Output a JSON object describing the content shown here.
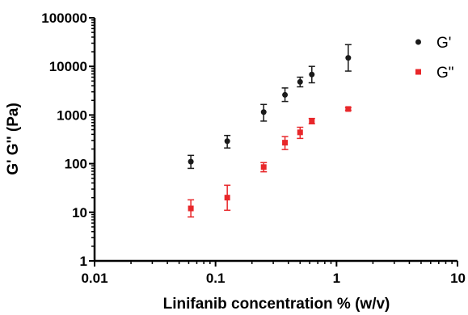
{
  "chart_data": {
    "type": "scatter",
    "title": "",
    "xlabel": "Linifanib concentration % (w/v)",
    "ylabel": "G' G'' (Pa)",
    "xscale": "log",
    "yscale": "log",
    "xlim": [
      0.01,
      10
    ],
    "ylim": [
      1,
      100000
    ],
    "x_ticks": [
      "0.01",
      "0.1",
      "1",
      "10"
    ],
    "y_ticks": [
      "1",
      "10",
      "100",
      "1000",
      "10000",
      "100000"
    ],
    "grid": false,
    "legend_position": "top-right",
    "series": [
      {
        "name": "G'",
        "color": "#1a1a1a",
        "marker": "circle",
        "points": [
          {
            "x": 0.0625,
            "y": 110,
            "ylow": 80,
            "yhigh": 148
          },
          {
            "x": 0.125,
            "y": 290,
            "ylow": 210,
            "yhigh": 380
          },
          {
            "x": 0.25,
            "y": 1150,
            "ylow": 750,
            "yhigh": 1650
          },
          {
            "x": 0.375,
            "y": 2600,
            "ylow": 1900,
            "yhigh": 3600
          },
          {
            "x": 0.5,
            "y": 4800,
            "ylow": 3800,
            "yhigh": 6000
          },
          {
            "x": 0.625,
            "y": 6800,
            "ylow": 4600,
            "yhigh": 10000
          },
          {
            "x": 1.25,
            "y": 15000,
            "ylow": 8000,
            "yhigh": 28000
          }
        ]
      },
      {
        "name": "G\"",
        "color": "#e8272a",
        "marker": "square",
        "points": [
          {
            "x": 0.0625,
            "y": 12,
            "ylow": 8,
            "yhigh": 18
          },
          {
            "x": 0.125,
            "y": 20,
            "ylow": 11,
            "yhigh": 36
          },
          {
            "x": 0.25,
            "y": 85,
            "ylow": 68,
            "yhigh": 105
          },
          {
            "x": 0.375,
            "y": 270,
            "ylow": 195,
            "yhigh": 360
          },
          {
            "x": 0.5,
            "y": 440,
            "ylow": 330,
            "yhigh": 560
          },
          {
            "x": 0.625,
            "y": 750,
            "ylow": 660,
            "yhigh": 850
          },
          {
            "x": 1.25,
            "y": 1330,
            "ylow": 1250,
            "yhigh": 1420
          }
        ]
      }
    ]
  }
}
